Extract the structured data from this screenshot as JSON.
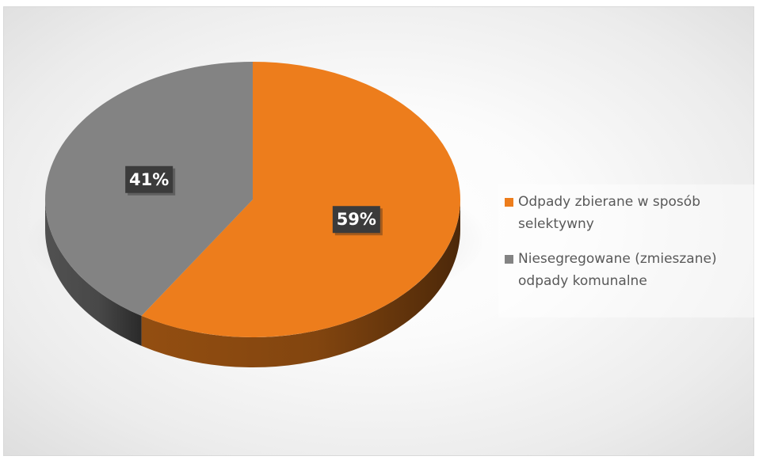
{
  "chart_data": {
    "type": "pie",
    "style": "3d",
    "title": "",
    "categories": [
      "Odpady zbierane w sposób selektywny",
      "Niesegregowane (zmieszane) odpady komunalne"
    ],
    "values": [
      59,
      41
    ],
    "data_labels": [
      "59%",
      "41%"
    ],
    "colors": [
      "#ED7D1C",
      "#838383"
    ],
    "legend_position": "right"
  }
}
